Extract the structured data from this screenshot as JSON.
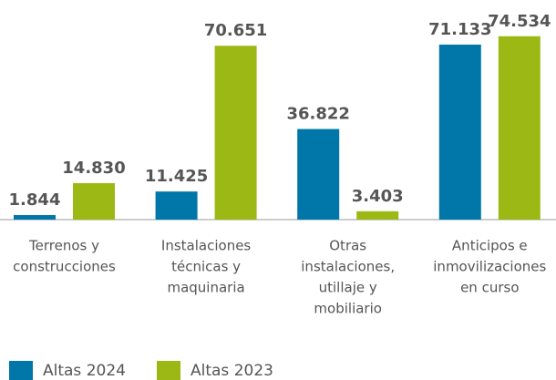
{
  "chart_data": {
    "type": "bar",
    "categories": [
      [
        "Terrenos y",
        "construcciones"
      ],
      [
        "Instalaciones",
        "técnicas y",
        "maquinaria"
      ],
      [
        "Otras",
        "instalaciones,",
        "utillaje y",
        "mobiliario"
      ],
      [
        "Anticipos e",
        "inmovilizaciones",
        "en curso"
      ]
    ],
    "series": [
      {
        "name": "Altas 2024",
        "color": "#0077a8",
        "values": [
          1844,
          11425,
          36822,
          71133
        ],
        "value_labels": [
          "1.844",
          "11.425",
          "36.822",
          "71.133"
        ]
      },
      {
        "name": "Altas 2023",
        "color": "#9cb814",
        "values": [
          14830,
          70651,
          3403,
          74534
        ],
        "value_labels": [
          "14.830",
          "70.651",
          "3.403",
          "74.534"
        ]
      }
    ],
    "ylim": [
      0,
      80000
    ],
    "legend": "bottom-left"
  }
}
